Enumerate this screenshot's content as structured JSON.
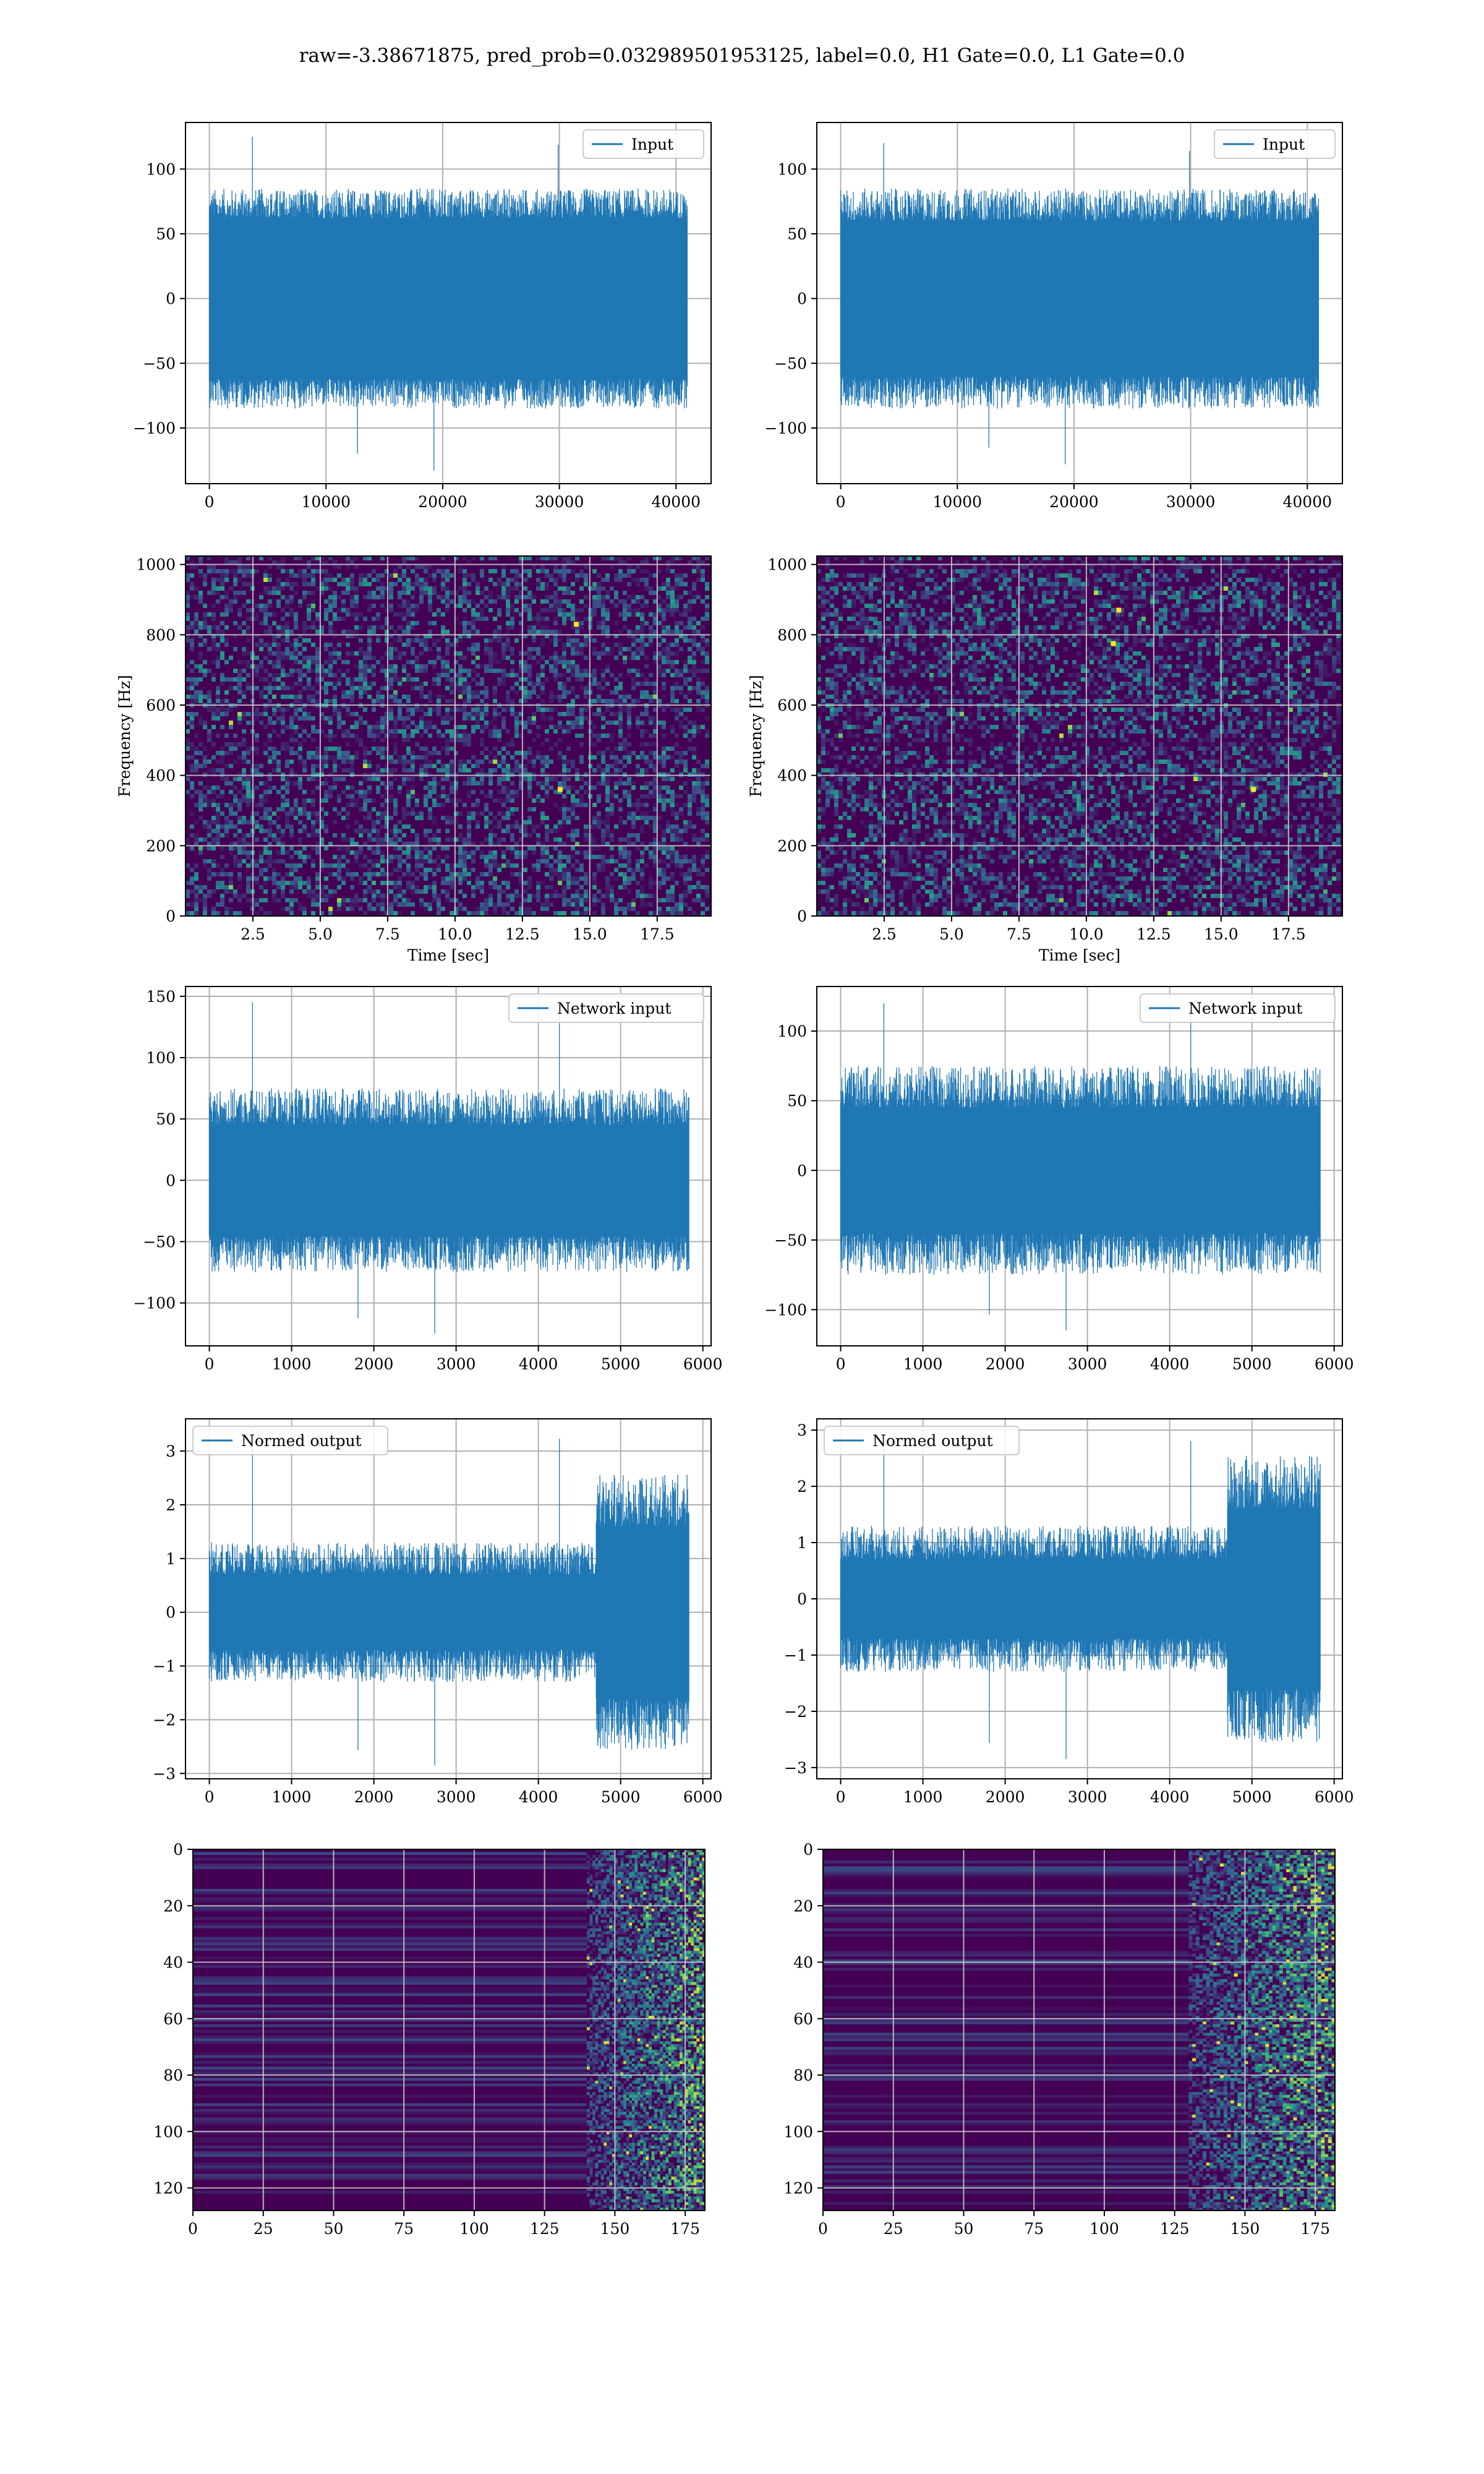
{
  "figure": {
    "title": "raw=-3.38671875, pred_prob=0.032989501953125, label=0.0, H1 Gate=0.0, L1 Gate=0.0",
    "colors": {
      "line": "#1f77b4",
      "cmap": [
        "#440154",
        "#3b528b",
        "#21918c",
        "#5ec962",
        "#fde725"
      ]
    }
  },
  "chart_data": [
    {
      "id": "p1",
      "type": "line",
      "legend": "Input",
      "legend_loc": "upper right",
      "grid": true,
      "xlim": [
        -2048,
        43008
      ],
      "ylim": [
        -143,
        136
      ],
      "xticks": [
        0,
        10000,
        20000,
        30000,
        40000
      ],
      "xticklabels": [
        "0",
        "10000",
        "20000",
        "30000",
        "40000"
      ],
      "yticks": [
        -100,
        -50,
        0,
        50,
        100
      ],
      "yticklabels": [
        "−100",
        "−50",
        "0",
        "50",
        "100"
      ],
      "x_range": [
        0,
        40960
      ],
      "band": [
        -62,
        62
      ],
      "typical_extreme": [
        -85,
        85
      ],
      "peak_max": 125,
      "peak_min": -133
    },
    {
      "id": "p2",
      "type": "line",
      "legend": "Input",
      "legend_loc": "upper right",
      "grid": true,
      "xlim": [
        -2048,
        43008
      ],
      "ylim": [
        -143,
        136
      ],
      "xticks": [
        0,
        10000,
        20000,
        30000,
        40000
      ],
      "xticklabels": [
        "0",
        "10000",
        "20000",
        "30000",
        "40000"
      ],
      "yticks": [
        -100,
        -50,
        0,
        50,
        100
      ],
      "yticklabels": [
        "−100",
        "−50",
        "0",
        "50",
        "100"
      ],
      "x_range": [
        0,
        40960
      ],
      "band": [
        -60,
        60
      ],
      "typical_extreme": [
        -85,
        85
      ],
      "peak_max": 120,
      "peak_min": -128
    },
    {
      "id": "p3",
      "type": "heatmap",
      "grid": true,
      "xlim": [
        0,
        19.5
      ],
      "ylim": [
        0,
        1024
      ],
      "xticks": [
        2.5,
        5.0,
        7.5,
        10.0,
        12.5,
        15.0,
        17.5
      ],
      "xticklabels": [
        "2.5",
        "5.0",
        "7.5",
        "10.0",
        "12.5",
        "15.0",
        "17.5"
      ],
      "yticks": [
        0,
        200,
        400,
        600,
        800,
        1000
      ],
      "yticklabels": [
        "0",
        "200",
        "400",
        "600",
        "800",
        "1000"
      ],
      "xlabel": "Time [sec]",
      "ylabel": "Frequency [Hz]",
      "dark_bands_hz": [
        490,
        1000
      ],
      "hot_spots": [
        [
          14.5,
          830
        ],
        [
          13.9,
          360
        ]
      ]
    },
    {
      "id": "p4",
      "type": "heatmap",
      "grid": true,
      "xlim": [
        0,
        19.5
      ],
      "ylim": [
        0,
        1024
      ],
      "xticks": [
        2.5,
        5.0,
        7.5,
        10.0,
        12.5,
        15.0,
        17.5
      ],
      "xticklabels": [
        "2.5",
        "5.0",
        "7.5",
        "10.0",
        "12.5",
        "15.0",
        "17.5"
      ],
      "yticks": [
        0,
        200,
        400,
        600,
        800,
        1000
      ],
      "yticklabels": [
        "0",
        "200",
        "400",
        "600",
        "800",
        "1000"
      ],
      "xlabel": "Time [sec]",
      "ylabel": "Frequency [Hz]",
      "dark_bands_hz": [
        490,
        1000
      ],
      "hot_spots": [
        [
          11.2,
          870
        ],
        [
          16.2,
          360
        ],
        [
          11.0,
          775
        ]
      ]
    },
    {
      "id": "p5",
      "type": "line",
      "legend": "Network input",
      "legend_loc": "upper right",
      "grid": true,
      "xlim": [
        -290,
        6100
      ],
      "ylim": [
        -135,
        158
      ],
      "xticks": [
        0,
        1000,
        2000,
        3000,
        4000,
        5000,
        6000
      ],
      "xticklabels": [
        "0",
        "1000",
        "2000",
        "3000",
        "4000",
        "5000",
        "6000"
      ],
      "yticks": [
        -100,
        -50,
        0,
        50,
        100,
        150
      ],
      "yticklabels": [
        "−100",
        "−50",
        "0",
        "50",
        "100",
        "150"
      ],
      "x_range": [
        0,
        5830
      ],
      "band": [
        -45,
        45
      ],
      "typical_extreme": [
        -75,
        75
      ],
      "peak_max": 145,
      "peak_min": -125
    },
    {
      "id": "p6",
      "type": "line",
      "legend": "Network input",
      "legend_loc": "upper right",
      "grid": true,
      "xlim": [
        -290,
        6100
      ],
      "ylim": [
        -126,
        132
      ],
      "xticks": [
        0,
        1000,
        2000,
        3000,
        4000,
        5000,
        6000
      ],
      "xticklabels": [
        "0",
        "1000",
        "2000",
        "3000",
        "4000",
        "5000",
        "6000"
      ],
      "yticks": [
        -100,
        -50,
        0,
        50,
        100
      ],
      "yticklabels": [
        "−100",
        "−50",
        "0",
        "50",
        "100"
      ],
      "x_range": [
        0,
        5830
      ],
      "band": [
        -45,
        45
      ],
      "typical_extreme": [
        -75,
        75
      ],
      "peak_max": 120,
      "peak_min": -115
    },
    {
      "id": "p7",
      "type": "line",
      "legend": "Normed output",
      "legend_loc": "upper left",
      "grid": true,
      "xlim": [
        -290,
        6100
      ],
      "ylim": [
        -3.1,
        3.6
      ],
      "xticks": [
        0,
        1000,
        2000,
        3000,
        4000,
        5000,
        6000
      ],
      "xticklabels": [
        "0",
        "1000",
        "2000",
        "3000",
        "4000",
        "5000",
        "6000"
      ],
      "yticks": [
        -3,
        -2,
        -1,
        0,
        1,
        2,
        3
      ],
      "yticklabels": [
        "−3",
        "−2",
        "−1",
        "0",
        "1",
        "2",
        "3"
      ],
      "x_range": [
        0,
        5830
      ],
      "band": [
        -0.7,
        0.7
      ],
      "typical_extreme": [
        -1.3,
        1.3
      ],
      "peak_max": 3.4,
      "peak_min": -2.85,
      "burst_start": 4700,
      "burst_band": [
        -1.6,
        1.6
      ]
    },
    {
      "id": "p8",
      "type": "line",
      "legend": "Normed output",
      "legend_loc": "upper left",
      "grid": true,
      "xlim": [
        -290,
        6100
      ],
      "ylim": [
        -3.2,
        3.2
      ],
      "xticks": [
        0,
        1000,
        2000,
        3000,
        4000,
        5000,
        6000
      ],
      "xticklabels": [
        "0",
        "1000",
        "2000",
        "3000",
        "4000",
        "5000",
        "6000"
      ],
      "yticks": [
        -3,
        -2,
        -1,
        0,
        1,
        2,
        3
      ],
      "yticklabels": [
        "−3",
        "−2",
        "−1",
        "0",
        "1",
        "2",
        "3"
      ],
      "x_range": [
        0,
        5830
      ],
      "band": [
        -0.7,
        0.7
      ],
      "typical_extreme": [
        -1.3,
        1.3
      ],
      "peak_max": 2.95,
      "peak_min": -2.85,
      "burst_start": 4700,
      "burst_band": [
        -1.6,
        1.6
      ]
    },
    {
      "id": "p9",
      "type": "heatmap",
      "grid": true,
      "inverted_y": true,
      "xlim": [
        0,
        182
      ],
      "ylim": [
        128,
        0
      ],
      "xticks": [
        0,
        25,
        50,
        75,
        100,
        125,
        150,
        175
      ],
      "xticklabels": [
        "0",
        "25",
        "50",
        "75",
        "100",
        "125",
        "150",
        "175"
      ],
      "yticks": [
        0,
        20,
        40,
        60,
        80,
        100,
        120
      ],
      "yticklabels": [
        "0",
        "20",
        "40",
        "60",
        "80",
        "100",
        "120"
      ],
      "active_from": 140
    },
    {
      "id": "p10",
      "type": "heatmap",
      "grid": true,
      "inverted_y": true,
      "xlim": [
        0,
        182
      ],
      "ylim": [
        128,
        0
      ],
      "xticks": [
        0,
        25,
        50,
        75,
        100,
        125,
        150,
        175
      ],
      "xticklabels": [
        "0",
        "25",
        "50",
        "75",
        "100",
        "125",
        "150",
        "175"
      ],
      "yticks": [
        0,
        20,
        40,
        60,
        80,
        100,
        120
      ],
      "yticklabels": [
        "0",
        "20",
        "40",
        "60",
        "80",
        "100",
        "120"
      ],
      "active_from": 130
    }
  ]
}
